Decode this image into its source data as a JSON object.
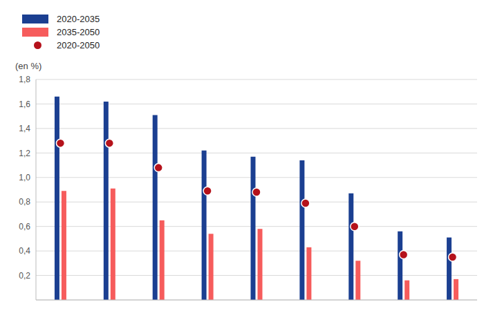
{
  "chart_data": {
    "type": "bar",
    "ylabel": "(en %)",
    "categories": [
      null,
      null,
      null,
      null,
      null,
      null,
      null,
      null,
      null
    ],
    "series": [
      {
        "name": "2020-2035",
        "type": "bar",
        "color": "#1b3f91",
        "values": [
          1.66,
          1.62,
          1.51,
          1.22,
          1.17,
          1.14,
          0.87,
          0.56,
          0.51
        ]
      },
      {
        "name": "2035-2050",
        "type": "bar",
        "color": "#f65c5c",
        "values": [
          0.89,
          0.91,
          0.65,
          0.54,
          0.58,
          0.43,
          0.32,
          0.16,
          0.17
        ]
      },
      {
        "name": "2020-2050",
        "type": "scatter",
        "marker": "circle",
        "color": "#b5121b",
        "values": [
          1.28,
          1.28,
          1.08,
          0.89,
          0.88,
          0.79,
          0.6,
          0.37,
          0.35
        ]
      }
    ],
    "ylim": [
      0,
      1.8
    ],
    "yticks": [
      {
        "value": 0.2,
        "label": "0,2"
      },
      {
        "value": 0.4,
        "label": "0,4"
      },
      {
        "value": 0.6,
        "label": "0,6"
      },
      {
        "value": 0.8,
        "label": "0,8"
      },
      {
        "value": 1.0,
        "label": "1,0"
      },
      {
        "value": 1.2,
        "label": "1,2"
      },
      {
        "value": 1.4,
        "label": "1,4"
      },
      {
        "value": 1.6,
        "label": "1,6"
      },
      {
        "value": 1.8,
        "label": "1,8"
      }
    ],
    "grid": true,
    "legend": "upper left"
  }
}
